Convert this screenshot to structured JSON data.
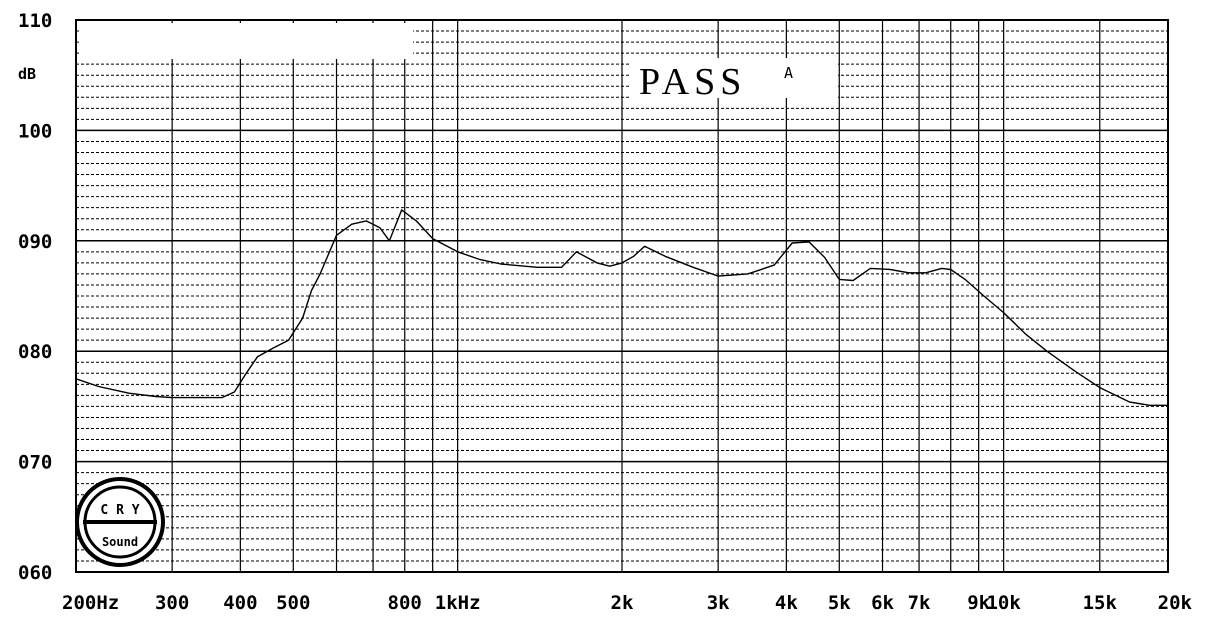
{
  "chart_data": {
    "type": "line",
    "xscale": "log",
    "xlim": [
      200,
      20000
    ],
    "ylim": [
      60,
      110
    ],
    "yunit": "dB",
    "yticks": [
      {
        "value": 110,
        "label": "110"
      },
      {
        "value": 100,
        "label": "100"
      },
      {
        "value": 90,
        "label": "090"
      },
      {
        "value": 80,
        "label": "080"
      },
      {
        "value": 70,
        "label": "070"
      },
      {
        "value": 60,
        "label": "060"
      }
    ],
    "xticks": [
      {
        "value": 200,
        "label": "200Hz"
      },
      {
        "value": 300,
        "label": "300"
      },
      {
        "value": 400,
        "label": "400"
      },
      {
        "value": 500,
        "label": "500"
      },
      {
        "value": 800,
        "label": "800"
      },
      {
        "value": 1000,
        "label": "1kHz"
      },
      {
        "value": 2000,
        "label": "2k"
      },
      {
        "value": 3000,
        "label": "3k"
      },
      {
        "value": 4000,
        "label": "4k"
      },
      {
        "value": 5000,
        "label": "5k"
      },
      {
        "value": 6000,
        "label": "6k"
      },
      {
        "value": 7000,
        "label": "7k"
      },
      {
        "value": 9000,
        "label": "9k"
      },
      {
        "value": 10000,
        "label": "10k"
      },
      {
        "value": 15000,
        "label": "15k"
      },
      {
        "value": 20000,
        "label": "20k"
      }
    ],
    "grid": true,
    "annotation": {
      "text": "PASS",
      "superscript": "A"
    },
    "series": [
      {
        "x": [
          200,
          220,
          250,
          280,
          300,
          330,
          370,
          390,
          410,
          430,
          460,
          490,
          520,
          540,
          560,
          600,
          640,
          680,
          720,
          750,
          790,
          840,
          900,
          1000,
          1100,
          1200,
          1400,
          1550,
          1650,
          1800,
          1900,
          2000,
          2100,
          2200,
          2400,
          2700,
          3000,
          3400,
          3800,
          4100,
          4400,
          4700,
          5000,
          5300,
          5700,
          6200,
          6700,
          7200,
          7700,
          8000,
          8500,
          9200,
          10000,
          11000,
          12000,
          13500,
          15000,
          17000,
          18500,
          20000
        ],
        "y": [
          77.5,
          76.8,
          76.2,
          75.9,
          75.8,
          75.8,
          75.8,
          76.3,
          78,
          79.5,
          80.3,
          81,
          83,
          85.5,
          87,
          90.5,
          91.5,
          91.8,
          91.2,
          90,
          92.8,
          91.8,
          90.2,
          89,
          88.3,
          87.9,
          87.6,
          87.6,
          89,
          88,
          87.7,
          88,
          88.6,
          89.5,
          88.6,
          87.6,
          86.8,
          87,
          87.8,
          89.8,
          89.9,
          88.5,
          86.5,
          86.4,
          87.5,
          87.4,
          87.1,
          87.1,
          87.5,
          87.4,
          86.5,
          85,
          83.5,
          81.5,
          80,
          78.2,
          76.7,
          75.4,
          75.1,
          75.1
        ]
      }
    ]
  },
  "logo": {
    "top_text": "C R Y",
    "bottom_text": "Sound"
  }
}
